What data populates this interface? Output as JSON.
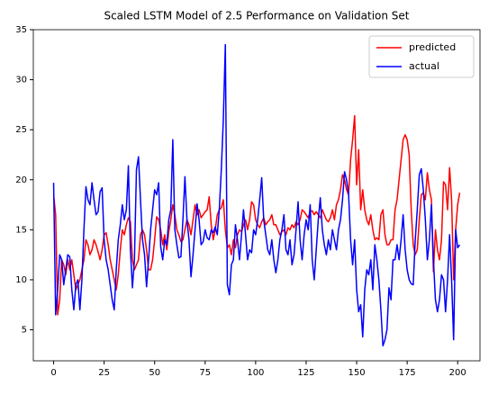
{
  "chart_data": {
    "type": "line",
    "title": "Scaled LSTM Model of 2.5 Performance on Validation Set",
    "x": [
      0,
      1,
      2,
      3,
      4,
      5,
      6,
      7,
      8,
      9,
      10,
      11,
      12,
      13,
      14,
      15,
      16,
      17,
      18,
      19,
      20,
      21,
      22,
      23,
      24,
      25,
      26,
      27,
      28,
      29,
      30,
      31,
      32,
      33,
      34,
      35,
      36,
      37,
      38,
      39,
      40,
      41,
      42,
      43,
      44,
      45,
      46,
      47,
      48,
      49,
      50,
      51,
      52,
      53,
      54,
      55,
      56,
      57,
      58,
      59,
      60,
      61,
      62,
      63,
      64,
      65,
      66,
      67,
      68,
      69,
      70,
      71,
      72,
      73,
      74,
      75,
      76,
      77,
      78,
      79,
      80,
      81,
      82,
      83,
      84,
      85,
      86,
      87,
      88,
      89,
      90,
      91,
      92,
      93,
      94,
      95,
      96,
      97,
      98,
      99,
      100,
      101,
      102,
      103,
      104,
      105,
      106,
      107,
      108,
      109,
      110,
      111,
      112,
      113,
      114,
      115,
      116,
      117,
      118,
      119,
      120,
      121,
      122,
      123,
      124,
      125,
      126,
      127,
      128,
      129,
      130,
      131,
      132,
      133,
      134,
      135,
      136,
      137,
      138,
      139,
      140,
      141,
      142,
      143,
      144,
      145,
      146,
      147,
      148,
      149,
      150,
      151,
      152,
      153,
      154,
      155,
      156,
      157,
      158,
      159,
      160,
      161,
      162,
      163,
      164,
      165,
      166,
      167,
      168,
      169,
      170,
      171,
      172,
      173,
      174,
      175,
      176,
      177,
      178,
      179,
      180,
      181,
      182,
      183,
      184,
      185,
      186,
      187,
      188,
      189,
      190,
      191,
      192,
      193,
      194,
      195,
      196,
      197,
      198,
      199,
      200,
      201
    ],
    "series": [
      {
        "name": "predicted",
        "color": "#ff0000",
        "values": [
          18.5,
          16.5,
          6.5,
          8,
          12,
          11.5,
          10.5,
          12,
          11,
          12,
          10.5,
          9,
          9.5,
          10,
          11,
          12,
          14,
          13.5,
          12.5,
          13,
          14,
          13.5,
          12.8,
          12,
          13,
          14.5,
          14.7,
          13.5,
          12,
          11,
          10,
          9,
          10.5,
          13,
          15,
          14.5,
          15.5,
          16.2,
          15.8,
          12,
          11,
          11.5,
          12,
          14.5,
          15,
          14.5,
          13,
          11,
          11,
          12,
          14,
          16.3,
          16,
          15,
          13.5,
          14.5,
          13,
          14.8,
          16,
          17.5,
          16.5,
          15,
          14.5,
          13.8,
          14,
          15,
          16,
          15.5,
          14.5,
          16,
          17.5,
          16.5,
          17,
          16.2,
          16.5,
          16.8,
          17,
          18.3,
          15.5,
          14,
          15,
          16.5,
          17,
          17.2,
          18,
          15,
          13.2,
          13.5,
          12.5,
          14,
          13.2,
          14.5,
          15,
          14.8,
          15.5,
          16,
          15,
          16,
          17.8,
          17.5,
          16,
          15.5,
          15.2,
          15.8,
          16.2,
          15.5,
          15.8,
          16,
          16.5,
          15.5,
          15.5,
          15,
          14.5,
          14.8,
          15,
          14.5,
          15.2,
          15,
          15.5,
          15.2,
          15.8,
          15.5,
          16,
          17,
          16.8,
          16.5,
          16.2,
          16.8,
          16.9,
          16.5,
          16.8,
          16.5,
          16.2,
          17,
          16.5,
          16,
          15.8,
          16.2,
          17,
          16,
          17.5,
          18,
          19,
          20.5,
          20,
          19,
          18.5,
          22,
          24,
          26.4,
          19.5,
          23,
          17,
          19,
          17,
          16,
          15.5,
          16.5,
          15,
          14,
          14.2,
          14,
          16.5,
          17,
          14.5,
          13.5,
          13.5,
          14,
          14,
          17,
          18,
          20,
          22,
          24,
          24.5,
          24,
          22.5,
          17,
          13.5,
          12.5,
          13,
          16,
          18.5,
          18.7,
          18,
          20.7,
          19,
          18,
          10.8,
          15,
          13,
          12,
          14,
          19.8,
          19.5,
          17,
          21.2,
          18,
          10,
          15,
          17.5,
          18.7
        ]
      },
      {
        "name": "actual",
        "color": "#0000ff",
        "values": [
          19.7,
          6.5,
          9,
          12.5,
          12,
          9.5,
          11,
          12.5,
          12.3,
          9,
          7,
          9.5,
          10,
          7,
          10,
          15,
          19.3,
          18,
          17.5,
          19.7,
          18,
          16.5,
          16.8,
          18.8,
          19.2,
          14,
          12,
          11,
          9.5,
          8,
          7,
          11,
          14,
          15.5,
          17.5,
          16,
          17,
          21.4,
          13,
          9.2,
          12,
          21,
          22.3,
          18,
          14,
          12.5,
          9.3,
          12,
          15,
          17,
          19,
          18.5,
          19.7,
          13.3,
          12,
          14,
          13.5,
          16,
          17,
          24,
          15,
          13.5,
          12.2,
          12.3,
          16,
          20.3,
          16,
          14,
          10.3,
          12.5,
          15,
          17.6,
          16,
          13.5,
          13.8,
          15,
          14.2,
          14,
          15,
          14.7,
          15.3,
          14.5,
          17,
          21,
          26,
          33.5,
          9.5,
          8.5,
          11.5,
          12,
          15.5,
          14,
          12,
          14.5,
          17,
          14.5,
          12,
          13,
          12.7,
          15,
          14.5,
          16,
          18,
          20.2,
          16,
          14.5,
          13,
          12.5,
          14,
          12,
          10.7,
          12,
          14,
          15,
          16.5,
          13,
          12.5,
          14,
          11.5,
          12.5,
          15,
          17.8,
          14,
          12,
          14.5,
          16,
          15,
          17.5,
          12,
          10,
          13,
          16,
          18.2,
          15,
          13.5,
          12.5,
          14,
          13,
          15,
          14,
          13,
          15,
          16,
          18,
          20.8,
          20,
          18.6,
          14,
          11.5,
          14,
          9,
          6.8,
          7.5,
          4.3,
          9,
          11,
          10.5,
          12,
          9,
          13.5,
          12,
          10,
          7,
          3.4,
          4,
          5,
          9.2,
          8,
          12,
          12,
          13.5,
          12,
          14,
          16.5,
          13,
          11,
          10,
          9.6,
          9.5,
          14,
          17,
          20.5,
          21.1,
          19,
          16,
          12,
          14,
          17.5,
          12,
          8,
          6.8,
          8,
          10.5,
          10,
          6.8,
          10,
          14.5,
          10,
          4,
          15,
          13.2,
          13.5
        ]
      }
    ],
    "xlim": [
      -10.05,
      211.05
    ],
    "xticks": [
      0,
      25,
      50,
      75,
      100,
      125,
      150,
      175,
      200
    ],
    "ylim": [
      1.9,
      35
    ],
    "yticks": [
      5,
      10,
      15,
      20,
      25,
      30,
      35
    ],
    "legend": "upper right"
  }
}
